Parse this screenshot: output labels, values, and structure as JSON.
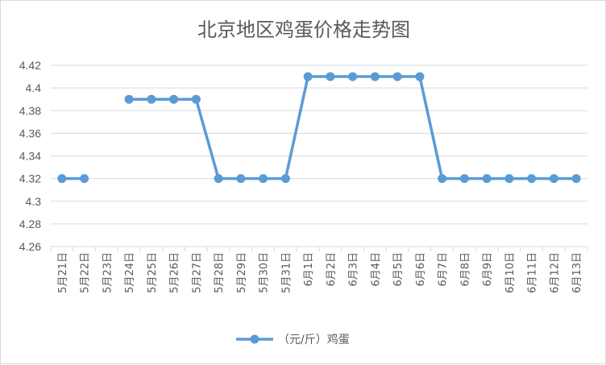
{
  "chart_data": {
    "type": "line",
    "title": "北京地区鸡蛋价格走势图",
    "categories": [
      "5月21日",
      "5月22日",
      "5月23日",
      "5月24日",
      "5月25日",
      "5月26日",
      "5月27日",
      "5月28日",
      "5月29日",
      "5月30日",
      "5月31日",
      "6月1日",
      "6月2日",
      "6月3日",
      "6月4日",
      "6月5日",
      "6月6日",
      "6月7日",
      "6月8日",
      "6月9日",
      "6月10日",
      "6月11日",
      "6月12日",
      "6月13日"
    ],
    "series": [
      {
        "name": "（元/斤）鸡蛋",
        "color": "#5b9bd5",
        "values": [
          4.32,
          4.32,
          null,
          4.39,
          4.39,
          4.39,
          4.39,
          4.32,
          4.32,
          4.32,
          4.32,
          4.41,
          4.41,
          4.41,
          4.41,
          4.41,
          4.41,
          4.32,
          4.32,
          4.32,
          4.32,
          4.32,
          4.32,
          4.32
        ]
      }
    ],
    "ylim": [
      4.26,
      4.42
    ],
    "yticks": [
      "4.42",
      "4.4",
      "4.38",
      "4.36",
      "4.34",
      "4.32",
      "4.3",
      "4.28",
      "4.26"
    ],
    "grid": true,
    "legend": "bottom"
  }
}
